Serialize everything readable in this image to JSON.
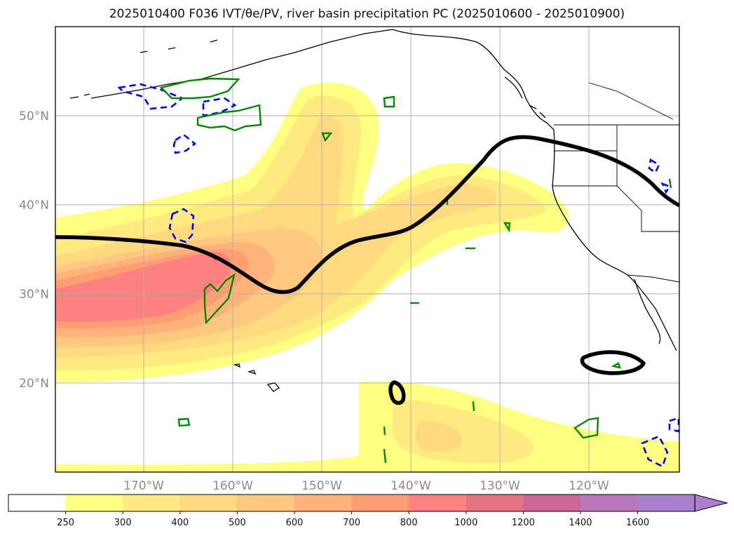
{
  "title": "2025010400 F036 IVT/θe/PV, river basin precipitation PC (2025010600 - 2025010900)",
  "map": {
    "lon_range": [
      -180,
      -110
    ],
    "lat_range": [
      10,
      60
    ],
    "lat_labels": [
      "50°N",
      "40°N",
      "30°N",
      "20°N"
    ],
    "lon_labels": [
      "170°W",
      "160°W",
      "150°W",
      "140°W",
      "130°W",
      "120°W"
    ],
    "grid": true
  },
  "colorbar": {
    "ticks": [
      "250",
      "300",
      "400",
      "500",
      "600",
      "700",
      "800",
      "1000",
      "1200",
      "1400",
      "1600"
    ],
    "colors": [
      "#ffffff",
      "#ffff80",
      "#ffea80",
      "#ffd980",
      "#ffc880",
      "#ffb37a",
      "#ff9d73",
      "#ff8080",
      "#e67380",
      "#cc6699",
      "#bb77bb",
      "#aa80cc"
    ],
    "extend": "max"
  },
  "contour_colors": {
    "theta_e": "#000000",
    "pv": "#0000ee",
    "precip": "#008800"
  }
}
